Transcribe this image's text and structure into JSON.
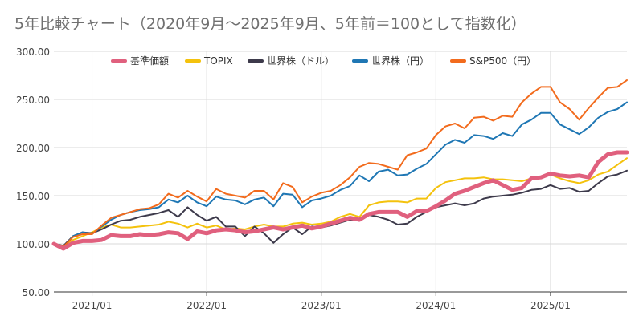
{
  "chart_data": {
    "type": "line",
    "title": "5年比較チャート（2020年9月〜2025年9月、5年前＝100として指数化）",
    "x_start": "2020-09",
    "x_ticks": [
      {
        "label": "2021/01",
        "index": 4
      },
      {
        "label": "2022/01",
        "index": 16
      },
      {
        "label": "2023/01",
        "index": 28
      },
      {
        "label": "2024/01",
        "index": 40
      },
      {
        "label": "2025/01",
        "index": 52
      }
    ],
    "ylim": [
      50,
      300
    ],
    "yticks": [
      50,
      100,
      150,
      200,
      250,
      300
    ],
    "ytick_labels": [
      "50.00",
      "100.00",
      "150.00",
      "200.00",
      "250.00",
      "300.00"
    ],
    "grid": true,
    "legend_position": "top",
    "series": [
      {
        "name": "基準価額",
        "color": "#e0607e",
        "values": [
          100,
          95,
          101,
          103,
          103,
          104,
          109,
          108,
          108,
          110,
          109,
          110,
          112,
          111,
          105,
          113,
          111,
          114,
          115,
          114,
          112,
          113,
          115,
          117,
          115,
          117,
          119,
          116,
          118,
          121,
          124,
          127,
          125,
          131,
          133,
          133,
          133,
          128,
          134,
          134,
          139,
          145,
          152,
          155,
          159,
          163,
          166,
          161,
          156,
          158,
          168,
          169,
          173,
          171,
          170,
          171,
          169,
          185,
          193,
          195,
          195
        ]
      },
      {
        "name": "TOPIX",
        "color": "#f4c20d",
        "values": [
          100,
          98,
          104,
          108,
          112,
          117,
          120,
          117,
          117,
          118,
          119,
          120,
          123,
          121,
          117,
          121,
          117,
          119,
          115,
          116,
          115,
          118,
          120,
          118,
          118,
          121,
          122,
          120,
          121,
          123,
          128,
          131,
          128,
          140,
          143,
          144,
          144,
          143,
          147,
          147,
          158,
          164,
          166,
          168,
          168,
          169,
          167,
          167,
          166,
          165,
          168,
          170,
          172,
          168,
          165,
          163,
          166,
          172,
          175,
          182,
          189
        ]
      },
      {
        "name": "世界株（ドル）",
        "color": "#3d3a4b",
        "values": [
          100,
          98,
          108,
          112,
          111,
          115,
          120,
          124,
          125,
          128,
          130,
          132,
          135,
          128,
          138,
          130,
          124,
          128,
          118,
          118,
          108,
          118,
          111,
          101,
          110,
          117,
          110,
          118,
          117,
          119,
          122,
          125,
          124,
          130,
          128,
          125,
          120,
          121,
          128,
          133,
          138,
          140,
          142,
          140,
          142,
          147,
          149,
          150,
          151,
          153,
          156,
          157,
          161,
          157,
          158,
          154,
          155,
          163,
          170,
          172,
          176
        ]
      },
      {
        "name": "世界株（円）",
        "color": "#1f77b4",
        "values": [
          100,
          96,
          108,
          112,
          110,
          118,
          125,
          130,
          133,
          135,
          136,
          138,
          146,
          143,
          150,
          143,
          139,
          149,
          146,
          145,
          141,
          146,
          148,
          139,
          152,
          151,
          138,
          145,
          147,
          150,
          156,
          160,
          171,
          165,
          175,
          177,
          171,
          172,
          178,
          183,
          193,
          203,
          208,
          205,
          213,
          212,
          209,
          215,
          212,
          224,
          229,
          236,
          236,
          224,
          219,
          214,
          221,
          231,
          237,
          240,
          247
        ]
      },
      {
        "name": "S&P500（円）",
        "color": "#f26b1d",
        "values": [
          100,
          97,
          107,
          110,
          110,
          119,
          127,
          130,
          133,
          136,
          137,
          141,
          152,
          148,
          155,
          149,
          144,
          157,
          152,
          150,
          148,
          155,
          155,
          146,
          163,
          159,
          143,
          149,
          153,
          155,
          161,
          169,
          180,
          184,
          183,
          180,
          177,
          192,
          195,
          199,
          213,
          222,
          225,
          220,
          231,
          232,
          228,
          233,
          232,
          247,
          256,
          263,
          263,
          247,
          240,
          229,
          241,
          252,
          262,
          263,
          270
        ]
      }
    ]
  }
}
